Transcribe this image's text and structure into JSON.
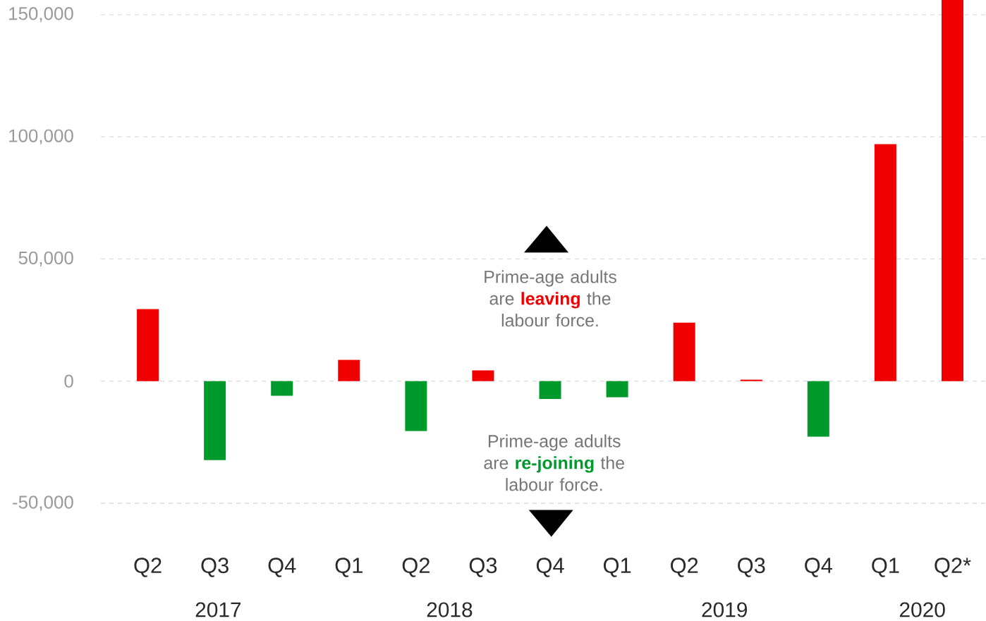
{
  "chart_data": {
    "type": "bar",
    "categories": [
      "Q2",
      "Q3",
      "Q4",
      "Q1",
      "Q2",
      "Q3",
      "Q4",
      "Q1",
      "Q2",
      "Q3",
      "Q4",
      "Q1",
      "Q2*"
    ],
    "values": [
      29500,
      -32300,
      -6000,
      8700,
      -20400,
      4400,
      -7300,
      -6600,
      23900,
      600,
      -22700,
      97000,
      156000
    ],
    "colors": [
      "#f00000",
      "#00992b",
      "#00992b",
      "#f00000",
      "#00992b",
      "#f00000",
      "#00992b",
      "#00992b",
      "#f00000",
      "#f00000",
      "#00992b",
      "#f00000",
      "#f00000"
    ],
    "ylim": [
      -50000,
      156000
    ],
    "yticks": [
      {
        "value": -50000,
        "label": "-50,000"
      },
      0,
      {
        "value": 50000,
        "label": "50,000"
      },
      {
        "value": 100000,
        "label": "100,000"
      },
      {
        "value": 150000,
        "label": "150,000"
      }
    ],
    "grid": "y",
    "annotations": [
      "Prime-age adults are **leaving** the labour force.",
      "Prime-age adults are **re-joining** the labour force.",
      "2017",
      "2018",
      "2019",
      "2020"
    ]
  }
}
